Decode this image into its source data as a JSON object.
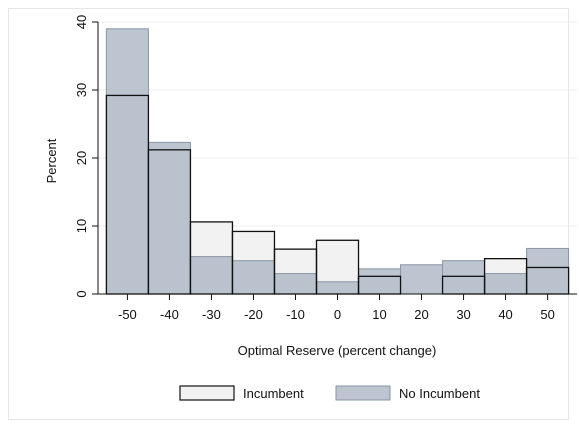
{
  "chart_data": {
    "type": "bar",
    "title": "",
    "xlabel": "Optimal Reserve (percent change)",
    "ylabel": "Percent",
    "xlim": [
      -57,
      57
    ],
    "ylim": [
      0,
      40
    ],
    "x_ticks": [
      -50,
      -40,
      -30,
      -20,
      -10,
      0,
      10,
      20,
      30,
      40,
      50
    ],
    "y_ticks": [
      0,
      10,
      20,
      30,
      40
    ],
    "bin_width": 10,
    "grid": "horizontal",
    "legend_position": "bottom",
    "series": [
      {
        "name": "Incumbent",
        "fill": "#f2f2f2",
        "stroke": "#111111",
        "x": [
          -50,
          -40,
          -30,
          -20,
          -10,
          0,
          10,
          20,
          30,
          40,
          50
        ],
        "values": [
          29.2,
          21.2,
          10.6,
          9.2,
          6.6,
          7.9,
          2.6,
          0,
          2.6,
          5.2,
          3.9
        ]
      },
      {
        "name": "No Incumbent",
        "fill": "#a9b5c3",
        "fill_opacity": 0.78,
        "stroke": "#8a96a3",
        "x": [
          -50,
          -40,
          -30,
          -20,
          -10,
          0,
          10,
          20,
          30,
          40,
          50
        ],
        "values": [
          39,
          22.3,
          5.5,
          4.9,
          3.0,
          1.8,
          3.7,
          4.3,
          4.9,
          3.0,
          6.7
        ]
      }
    ]
  }
}
